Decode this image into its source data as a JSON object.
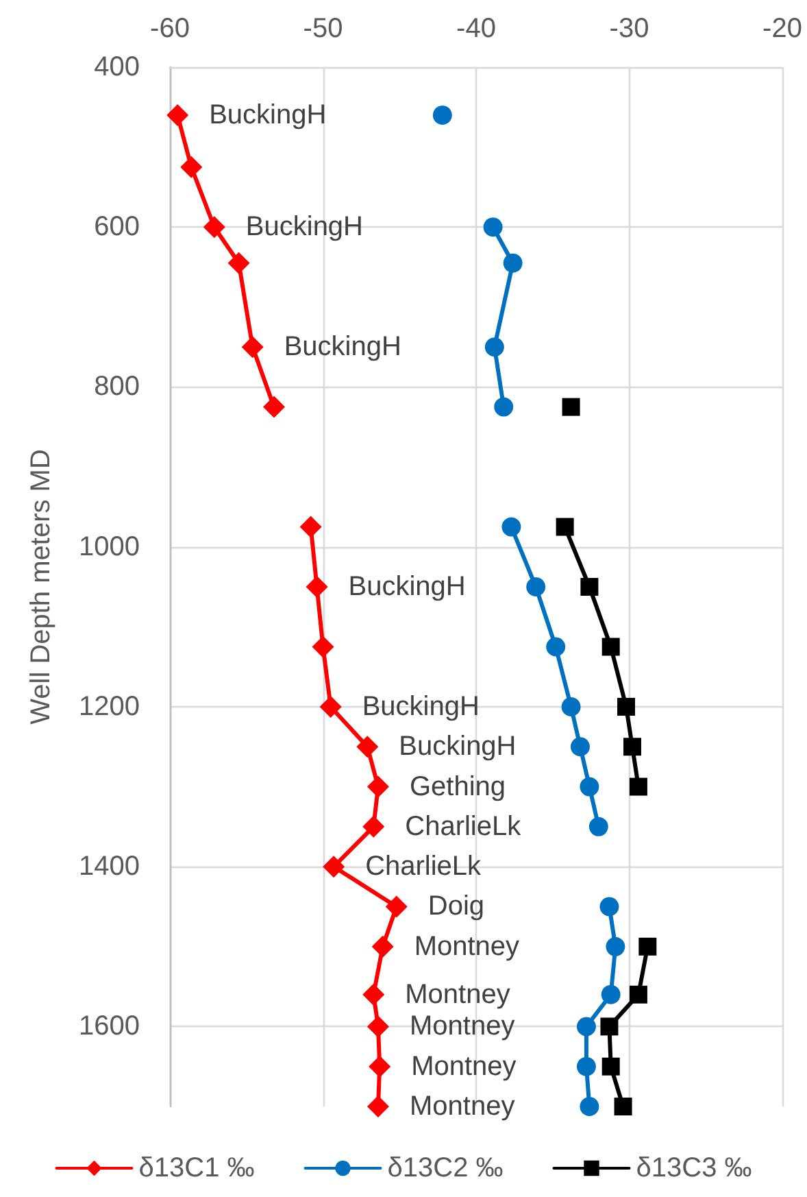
{
  "chart_data": {
    "type": "line",
    "ylabel": "Well Depth meters MD",
    "xlim": [
      -60,
      -20
    ],
    "xticks": [
      -60,
      -50,
      -40,
      -30,
      -20
    ],
    "ylim": [
      1700,
      400
    ],
    "yticks": [
      400,
      600,
      800,
      1000,
      1200,
      1400,
      1600
    ],
    "grid": true,
    "legend": "bottom",
    "series": [
      {
        "name": "δ13C1 ‰",
        "color": "#ff0000",
        "marker": "diamond",
        "x": [
          -59.5,
          -58.6,
          -57.1,
          -55.5,
          -54.6,
          -53.2,
          null,
          -50.8,
          -50.4,
          -50.0,
          -49.5,
          -47.1,
          -46.4,
          -46.7,
          -49.3,
          -45.2,
          -46.1,
          -46.7,
          -46.4,
          -46.3,
          -46.4
        ],
        "values": [
          460,
          525,
          600,
          645,
          750,
          825,
          null,
          975,
          1050,
          1125,
          1200,
          1250,
          1300,
          1350,
          1400,
          1450,
          1500,
          1560,
          1600,
          1650,
          1700
        ]
      },
      {
        "name": "δ13C2 ‰",
        "color": "#0070c0",
        "marker": "circle",
        "x": [
          -42.2,
          null,
          -38.9,
          -37.6,
          -38.8,
          -38.2,
          null,
          -37.7,
          -36.1,
          -34.8,
          -33.8,
          -33.2,
          -32.6,
          -32.0,
          null,
          -31.3,
          -30.9,
          -31.2,
          -32.8,
          -32.8,
          -32.6
        ],
        "values": [
          460,
          null,
          600,
          645,
          750,
          825,
          null,
          975,
          1050,
          1125,
          1200,
          1250,
          1300,
          1350,
          null,
          1450,
          1500,
          1560,
          1600,
          1650,
          1700
        ]
      },
      {
        "name": "δ13C3 ‰",
        "color": "#000000",
        "marker": "square",
        "x": [
          -33.8,
          null,
          -34.2,
          -32.6,
          -31.2,
          -30.2,
          -29.8,
          -29.4,
          null,
          -28.8,
          -29.4,
          -31.3,
          -31.2,
          -30.4
        ],
        "values": [
          825,
          null,
          975,
          1050,
          1125,
          1200,
          1250,
          1300,
          null,
          1500,
          1560,
          1600,
          1650,
          1700
        ]
      }
    ],
    "annotations": [
      {
        "text": "BuckingH",
        "x": -59.5,
        "y": 460
      },
      {
        "text": "BuckingH",
        "x": -57.1,
        "y": 600
      },
      {
        "text": "BuckingH",
        "x": -54.6,
        "y": 750
      },
      {
        "text": "BuckingH",
        "x": -50.4,
        "y": 1050
      },
      {
        "text": "BuckingH",
        "x": -49.5,
        "y": 1200
      },
      {
        "text": "BuckingH",
        "x": -47.1,
        "y": 1250
      },
      {
        "text": "Gething",
        "x": -46.4,
        "y": 1300
      },
      {
        "text": "CharlieLk",
        "x": -46.7,
        "y": 1350
      },
      {
        "text": "CharlieLk",
        "x": -49.3,
        "y": 1400
      },
      {
        "text": "Doig",
        "x": -45.2,
        "y": 1450
      },
      {
        "text": "Montney",
        "x": -46.1,
        "y": 1500
      },
      {
        "text": "Montney",
        "x": -46.7,
        "y": 1560
      },
      {
        "text": "Montney",
        "x": -46.4,
        "y": 1600
      },
      {
        "text": "Montney",
        "x": -46.3,
        "y": 1650
      },
      {
        "text": "Montney",
        "x": -46.4,
        "y": 1700
      }
    ]
  }
}
